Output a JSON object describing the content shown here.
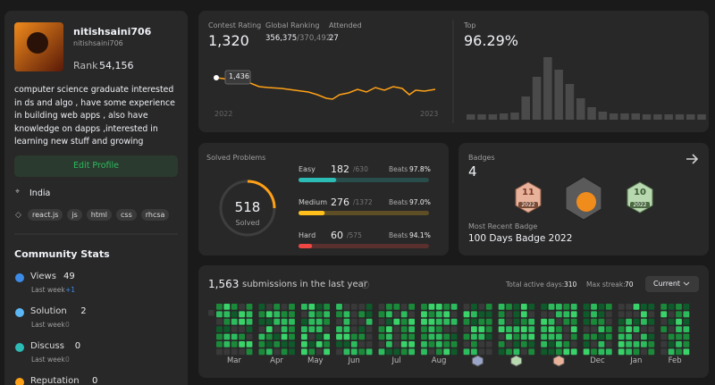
{
  "profile": {
    "name": "nitishsaini706",
    "username": "nitishsaini706",
    "rank_label": "Rank",
    "rank": "54,156",
    "bio": "computer science graduate interested in ds and algo , have some experience in building web apps , also have knowledge on dapps ,interested in learning new stuff and growing",
    "edit_button": "Edit Profile",
    "location": "India",
    "tags": [
      "react.js",
      "js",
      "html",
      "css",
      "rhcsa"
    ]
  },
  "community_stats": {
    "title": "Community Stats",
    "last_week_label": "Last week",
    "items": [
      {
        "label": "Views",
        "value": "49",
        "change": "+1"
      },
      {
        "label": "Solution",
        "value": "2",
        "change": "0"
      },
      {
        "label": "Discuss",
        "value": "0",
        "change": "0"
      },
      {
        "label": "Reputation",
        "value": "0"
      }
    ]
  },
  "contest": {
    "rating_label": "Contest Rating",
    "rating": "1,320",
    "ranking_label": "Global Ranking",
    "ranking": "356,375",
    "ranking_total": "/370,492",
    "attended_label": "Attended",
    "attended": "27",
    "tooltip": "1,436",
    "x_start": "2022",
    "x_end": "2023",
    "top_label": "Top",
    "top": "96.29%"
  },
  "solved": {
    "title": "Solved Problems",
    "count": "518",
    "count_label": "Solved",
    "beats_label": "Beats",
    "difficulties": [
      {
        "name": "Easy",
        "solved": 182,
        "total": 630,
        "total_label": "/630",
        "beats": "97.8%",
        "color": "#2cbbb5"
      },
      {
        "name": "Medium",
        "solved": 276,
        "total": 1372,
        "total_label": "/1372",
        "beats": "97.0%",
        "color": "#ffc01e"
      },
      {
        "name": "Hard",
        "solved": 60,
        "total": 575,
        "total_label": "/575",
        "beats": "94.1%",
        "color": "#ef4743"
      }
    ]
  },
  "badges": {
    "title": "Badges",
    "count": "4",
    "items": [
      {
        "label": "11",
        "year": "2022"
      },
      {
        "label": "10",
        "year": "2022"
      }
    ],
    "recent_label": "Most Recent Badge",
    "recent": "100 Days Badge 2022"
  },
  "submissions": {
    "count": "1,563",
    "text": "submissions in the last year",
    "active_label": "Total active days:",
    "active": "310",
    "streak_label": "Max streak:",
    "streak": "70",
    "dropdown": "Current",
    "months": [
      "Mar",
      "Apr",
      "May",
      "Jun",
      "Jul",
      "Aug",
      null,
      null,
      null,
      "Dec",
      "Jan",
      "Feb"
    ]
  }
}
